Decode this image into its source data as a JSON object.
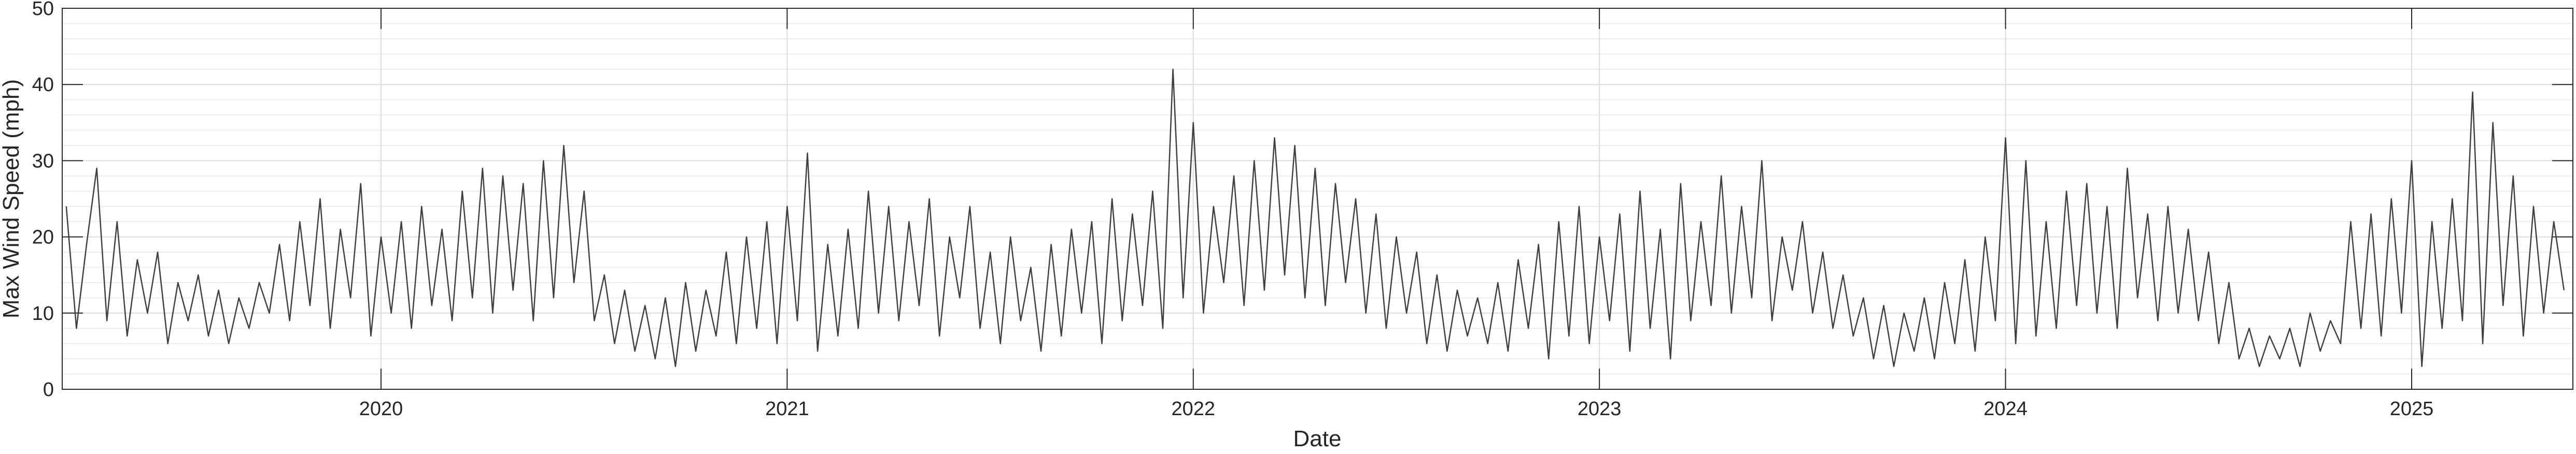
{
  "chart_data": {
    "type": "line",
    "xlabel": "Date",
    "ylabel": "Max Wind Speed (mph)",
    "color": "#404040",
    "grid": true,
    "xlim": [
      2019.215,
      2025.397
    ],
    "xticks": [
      2020,
      2021,
      2022,
      2023,
      2024,
      2025
    ],
    "ylim": [
      0,
      50
    ],
    "yticks": [
      0,
      10,
      20,
      30,
      40,
      50
    ],
    "yminorticks": [
      2,
      4,
      6,
      8,
      12,
      14,
      16,
      18,
      22,
      24,
      26,
      28,
      32,
      34,
      36,
      38,
      42,
      44,
      46,
      48
    ],
    "x": [
      2019.225,
      2019.25,
      2019.275,
      2019.3,
      2019.325,
      2019.35,
      2019.375,
      2019.4,
      2019.425,
      2019.45,
      2019.475,
      2019.5,
      2019.525,
      2019.55,
      2019.575,
      2019.6,
      2019.625,
      2019.65,
      2019.675,
      2019.7,
      2019.725,
      2019.75,
      2019.775,
      2019.8,
      2019.825,
      2019.85,
      2019.875,
      2019.9,
      2019.925,
      2019.95,
      2019.975,
      2020,
      2020.025,
      2020.05,
      2020.075,
      2020.1,
      2020.125,
      2020.15,
      2020.175,
      2020.2,
      2020.225,
      2020.25,
      2020.275,
      2020.3,
      2020.325,
      2020.35,
      2020.375,
      2020.4,
      2020.425,
      2020.45,
      2020.475,
      2020.5,
      2020.525,
      2020.55,
      2020.575,
      2020.6,
      2020.625,
      2020.65,
      2020.675,
      2020.7,
      2020.725,
      2020.75,
      2020.775,
      2020.8,
      2020.825,
      2020.85,
      2020.875,
      2020.9,
      2020.925,
      2020.95,
      2020.975,
      2021,
      2021.025,
      2021.05,
      2021.075,
      2021.1,
      2021.125,
      2021.15,
      2021.175,
      2021.2,
      2021.225,
      2021.25,
      2021.275,
      2021.3,
      2021.325,
      2021.35,
      2021.375,
      2021.4,
      2021.425,
      2021.45,
      2021.475,
      2021.5,
      2021.525,
      2021.55,
      2021.575,
      2021.6,
      2021.625,
      2021.65,
      2021.675,
      2021.7,
      2021.725,
      2021.75,
      2021.775,
      2021.8,
      2021.825,
      2021.85,
      2021.875,
      2021.9,
      2021.925,
      2021.95,
      2021.975,
      2022,
      2022.025,
      2022.05,
      2022.075,
      2022.1,
      2022.125,
      2022.15,
      2022.175,
      2022.2,
      2022.225,
      2022.25,
      2022.275,
      2022.3,
      2022.325,
      2022.35,
      2022.375,
      2022.4,
      2022.425,
      2022.45,
      2022.475,
      2022.5,
      2022.525,
      2022.55,
      2022.575,
      2022.6,
      2022.625,
      2022.65,
      2022.675,
      2022.7,
      2022.725,
      2022.75,
      2022.775,
      2022.8,
      2022.825,
      2022.85,
      2022.875,
      2022.9,
      2022.925,
      2022.95,
      2022.975,
      2023,
      2023.025,
      2023.05,
      2023.075,
      2023.1,
      2023.125,
      2023.15,
      2023.175,
      2023.2,
      2023.225,
      2023.25,
      2023.275,
      2023.3,
      2023.325,
      2023.35,
      2023.375,
      2023.4,
      2023.425,
      2023.45,
      2023.475,
      2023.5,
      2023.525,
      2023.55,
      2023.575,
      2023.6,
      2023.625,
      2023.65,
      2023.675,
      2023.7,
      2023.725,
      2023.75,
      2023.775,
      2023.8,
      2023.825,
      2023.85,
      2023.875,
      2023.9,
      2023.925,
      2023.95,
      2023.975,
      2024,
      2024.025,
      2024.05,
      2024.075,
      2024.1,
      2024.125,
      2024.15,
      2024.175,
      2024.2,
      2024.225,
      2024.25,
      2024.275,
      2024.3,
      2024.325,
      2024.35,
      2024.375,
      2024.4,
      2024.425,
      2024.45,
      2024.475,
      2024.5,
      2024.525,
      2024.55,
      2024.575,
      2024.6,
      2024.625,
      2024.65,
      2024.675,
      2024.7,
      2024.725,
      2024.75,
      2024.775,
      2024.8,
      2024.825,
      2024.85,
      2024.875,
      2024.9,
      2024.925,
      2024.95,
      2024.975,
      2025,
      2025.025,
      2025.05,
      2025.075,
      2025.1,
      2025.125,
      2025.15,
      2025.175,
      2025.2,
      2025.225,
      2025.25,
      2025.275,
      2025.3,
      2025.325,
      2025.35,
      2025.375
    ],
    "values": [
      24,
      8,
      19,
      29,
      9,
      22,
      7,
      17,
      10,
      18,
      6,
      14,
      9,
      15,
      7,
      13,
      6,
      12,
      8,
      14,
      10,
      19,
      9,
      22,
      11,
      25,
      8,
      21,
      12,
      27,
      7,
      20,
      10,
      22,
      8,
      24,
      11,
      21,
      9,
      26,
      12,
      29,
      10,
      28,
      13,
      27,
      9,
      30,
      12,
      32,
      14,
      26,
      9,
      15,
      6,
      13,
      5,
      11,
      4,
      12,
      3,
      14,
      5,
      13,
      7,
      18,
      6,
      20,
      8,
      22,
      6,
      24,
      9,
      31,
      5,
      19,
      7,
      21,
      8,
      26,
      10,
      24,
      9,
      22,
      11,
      25,
      7,
      20,
      12,
      24,
      8,
      18,
      6,
      20,
      9,
      16,
      5,
      19,
      7,
      21,
      10,
      22,
      6,
      25,
      9,
      23,
      11,
      26,
      8,
      42,
      12,
      35,
      10,
      24,
      14,
      28,
      11,
      30,
      13,
      33,
      15,
      32,
      12,
      29,
      11,
      27,
      14,
      25,
      10,
      23,
      8,
      20,
      10,
      18,
      6,
      15,
      5,
      13,
      7,
      12,
      6,
      14,
      5,
      17,
      8,
      19,
      4,
      22,
      7,
      24,
      6,
      20,
      9,
      23,
      5,
      26,
      8,
      21,
      4,
      27,
      9,
      22,
      11,
      28,
      10,
      24,
      12,
      30,
      9,
      20,
      13,
      22,
      10,
      18,
      8,
      15,
      7,
      12,
      4,
      11,
      3,
      10,
      5,
      12,
      4,
      14,
      6,
      17,
      5,
      20,
      9,
      33,
      6,
      30,
      7,
      22,
      8,
      26,
      11,
      27,
      10,
      24,
      8,
      29,
      12,
      23,
      9,
      24,
      10,
      21,
      9,
      18,
      6,
      14,
      4,
      8,
      3,
      7,
      4,
      8,
      3,
      10,
      5,
      9,
      6,
      22,
      8,
      23,
      7,
      25,
      10,
      30,
      3,
      22,
      8,
      25,
      9,
      39,
      6,
      35,
      11,
      28,
      7,
      24,
      10,
      22,
      13
    ]
  }
}
